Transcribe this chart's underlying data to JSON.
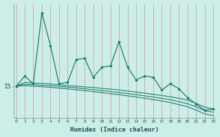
{
  "xlabel": "Humidex (Indice chaleur)",
  "bg_color": "#cceee8",
  "line_color": "#1a7a6e",
  "grid_color": "#d4a0a0",
  "x_ticks": [
    0,
    1,
    2,
    3,
    4,
    5,
    6,
    7,
    8,
    9,
    10,
    11,
    12,
    13,
    14,
    15,
    16,
    17,
    18,
    19,
    20,
    21,
    22,
    23
  ],
  "main_x": [
    0,
    1,
    2,
    3,
    4,
    5,
    6,
    7,
    8,
    9,
    10,
    11,
    12,
    13,
    14,
    15,
    16,
    17,
    18,
    19,
    20,
    21,
    22,
    23
  ],
  "main_y": [
    15.0,
    15.8,
    15.2,
    20.8,
    18.2,
    15.2,
    15.3,
    17.1,
    17.2,
    15.7,
    16.5,
    16.6,
    18.5,
    16.5,
    15.5,
    15.8,
    15.7,
    14.7,
    15.2,
    14.8,
    14.1,
    13.6,
    13.1,
    13.2
  ],
  "smooth1_y": [
    15.0,
    15.3,
    15.25,
    15.22,
    15.18,
    15.12,
    15.05,
    15.0,
    14.95,
    14.9,
    14.83,
    14.77,
    14.7,
    14.62,
    14.53,
    14.45,
    14.36,
    14.27,
    14.17,
    14.05,
    13.9,
    13.65,
    13.35,
    13.2
  ],
  "smooth2_y": [
    15.0,
    15.15,
    15.12,
    15.08,
    15.04,
    14.99,
    14.93,
    14.87,
    14.8,
    14.73,
    14.65,
    14.58,
    14.5,
    14.42,
    14.33,
    14.24,
    14.15,
    14.04,
    13.93,
    13.78,
    13.62,
    13.38,
    13.08,
    12.95
  ],
  "smooth3_y": [
    15.0,
    15.05,
    15.0,
    14.96,
    14.91,
    14.85,
    14.79,
    14.72,
    14.65,
    14.57,
    14.49,
    14.41,
    14.33,
    14.24,
    14.15,
    14.05,
    13.95,
    13.83,
    13.71,
    13.55,
    13.38,
    13.12,
    12.82,
    12.68
  ],
  "ylim_min": 12.5,
  "ylim_max": 21.5,
  "xlim_min": -0.3,
  "xlim_max": 23.3
}
